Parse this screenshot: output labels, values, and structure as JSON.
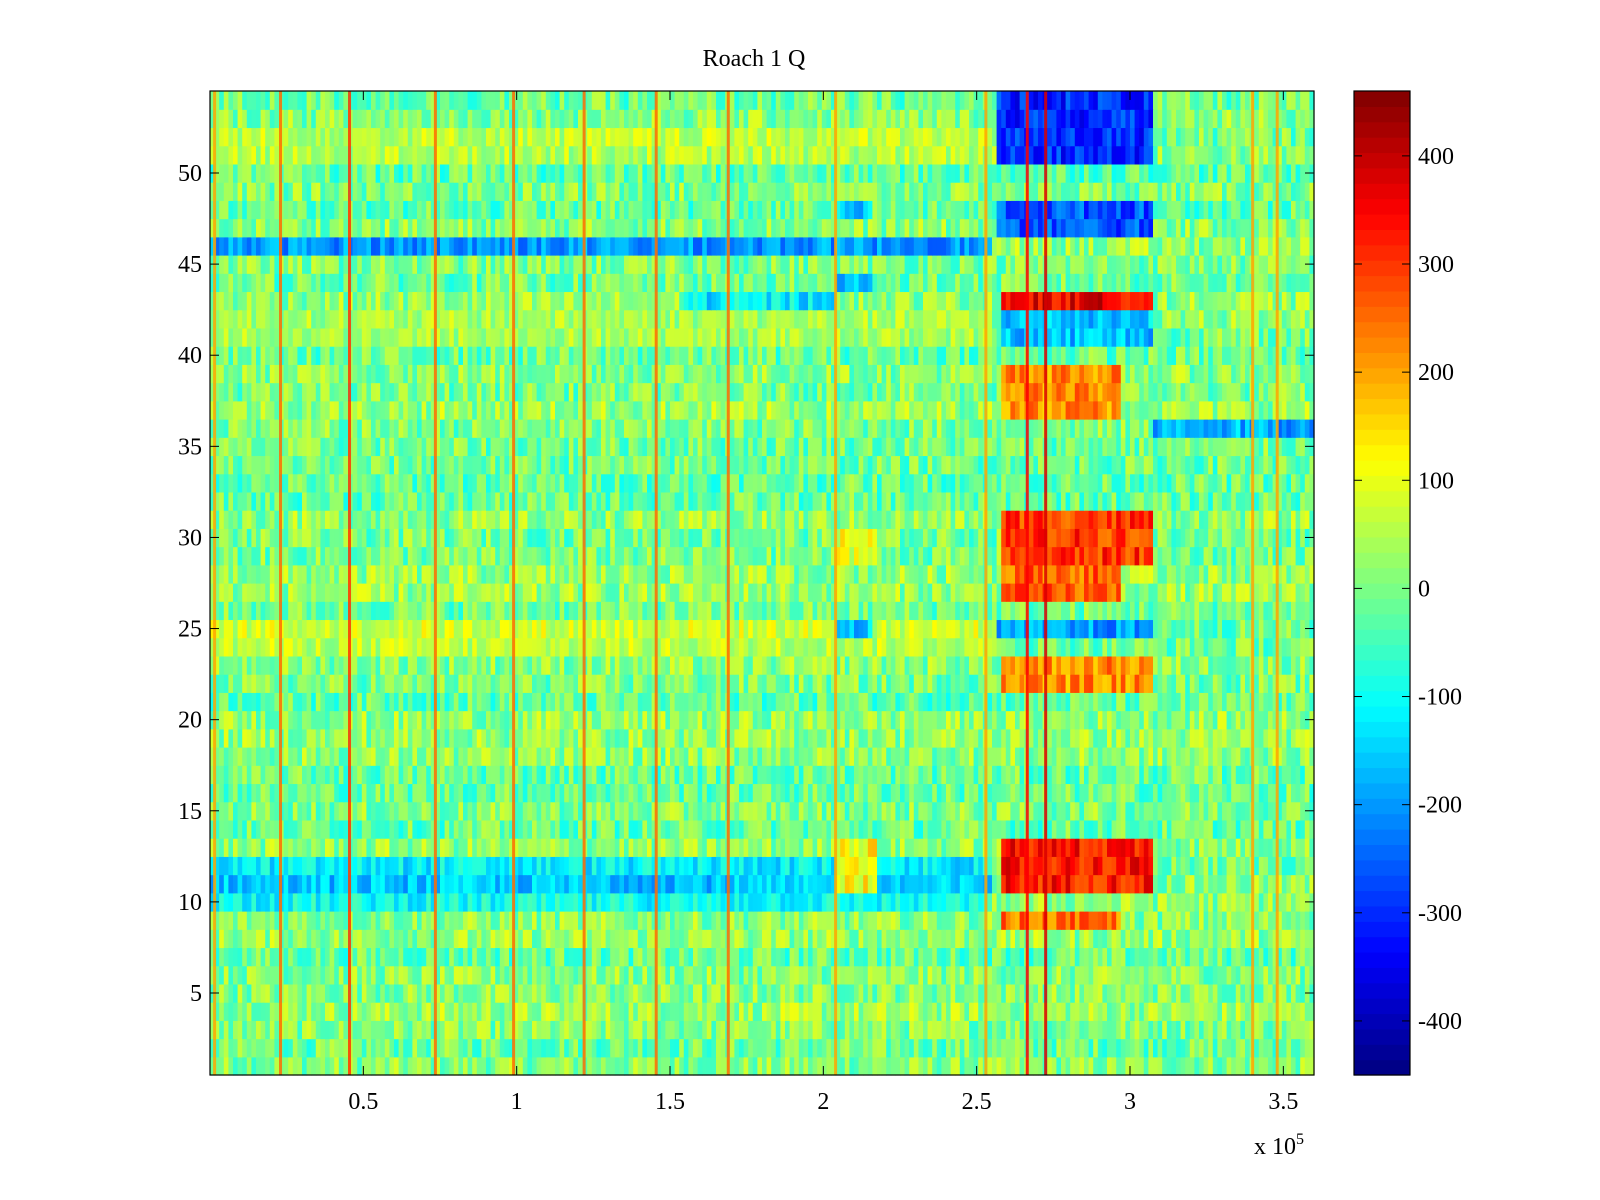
{
  "chart_data": {
    "type": "heatmap",
    "title": "Roach 1 Q",
    "xlabel": "",
    "ylabel": "",
    "x_exponent_label": "x 10",
    "x_exponent": "5",
    "xlim": [
      0,
      3.6
    ],
    "ylim": [
      0.5,
      54.5
    ],
    "x_ticks": [
      0.5,
      1,
      1.5,
      2,
      2.5,
      3,
      3.5
    ],
    "x_tick_labels": [
      "0.5",
      "1",
      "1.5",
      "2",
      "2.5",
      "3",
      "3.5"
    ],
    "y_ticks": [
      5,
      10,
      15,
      20,
      25,
      30,
      35,
      40,
      45,
      50
    ],
    "y_tick_labels": [
      "5",
      "10",
      "15",
      "20",
      "25",
      "30",
      "35",
      "40",
      "45",
      "50"
    ],
    "colorbar": {
      "colormap": "jet",
      "range": [
        -450,
        460
      ],
      "ticks": [
        -400,
        -300,
        -200,
        -100,
        0,
        100,
        200,
        300,
        400
      ],
      "tick_labels": [
        "-400",
        "-300",
        "-200",
        "-100",
        "0",
        "100",
        "200",
        "300",
        "400"
      ]
    },
    "rows": 54,
    "base_value": 0,
    "vertical_lines": [
      {
        "x": 0.015,
        "value": 200
      },
      {
        "x": 0.23,
        "value": 250
      },
      {
        "x": 0.455,
        "value": 300
      },
      {
        "x": 0.735,
        "value": 250
      },
      {
        "x": 0.99,
        "value": 250
      },
      {
        "x": 1.22,
        "value": 250
      },
      {
        "x": 1.455,
        "value": 250
      },
      {
        "x": 1.69,
        "value": 250
      },
      {
        "x": 2.04,
        "value": 200
      },
      {
        "x": 2.53,
        "value": 200
      },
      {
        "x": 2.665,
        "value": 350
      },
      {
        "x": 2.725,
        "value": 380
      },
      {
        "x": 3.4,
        "value": 200
      },
      {
        "x": 3.48,
        "value": 200
      }
    ],
    "row_values": [
      {
        "y": 52,
        "value": 60
      },
      {
        "y": 51,
        "value": 50
      },
      {
        "y": 46,
        "value": -200
      },
      {
        "y": 42,
        "value": 40
      },
      {
        "y": 41,
        "value": 40
      },
      {
        "y": 25,
        "value": 80
      },
      {
        "y": 24,
        "value": 60
      },
      {
        "y": 11,
        "value": -160
      },
      {
        "y": 12,
        "value": -120
      },
      {
        "y": 10,
        "value": -100
      }
    ],
    "blocks": [
      {
        "x": [
          2.57,
          3.08
        ],
        "y": [
          51,
          54
        ],
        "value": -300
      },
      {
        "x": [
          2.57,
          3.08
        ],
        "y": [
          47,
          48
        ],
        "value": -260
      },
      {
        "x": [
          2.58,
          3.08
        ],
        "y": [
          43,
          43
        ],
        "value": 360
      },
      {
        "x": [
          2.58,
          3.08
        ],
        "y": [
          41,
          42
        ],
        "value": -160
      },
      {
        "x": [
          2.58,
          2.97
        ],
        "y": [
          37,
          39
        ],
        "value": 220
      },
      {
        "x": [
          3.08,
          3.6
        ],
        "y": [
          36,
          36
        ],
        "value": -180
      },
      {
        "x": [
          2.58,
          3.08
        ],
        "y": [
          29,
          31
        ],
        "value": 300
      },
      {
        "x": [
          2.58,
          2.97
        ],
        "y": [
          27,
          28
        ],
        "value": 260
      },
      {
        "x": [
          2.56,
          3.08
        ],
        "y": [
          25,
          25
        ],
        "value": -200
      },
      {
        "x": [
          2.58,
          3.08
        ],
        "y": [
          22,
          23
        ],
        "value": 220
      },
      {
        "x": [
          2.58,
          3.08
        ],
        "y": [
          11,
          13
        ],
        "value": 330
      },
      {
        "x": [
          2.58,
          2.97
        ],
        "y": [
          9,
          9
        ],
        "value": 240
      },
      {
        "x": [
          2.04,
          2.18
        ],
        "y": [
          11,
          13
        ],
        "value": 120
      },
      {
        "x": [
          2.04,
          2.18
        ],
        "y": [
          29,
          30
        ],
        "value": 100
      },
      {
        "x": [
          2.04,
          2.16
        ],
        "y": [
          25,
          25
        ],
        "value": -170
      },
      {
        "x": [
          2.04,
          2.16
        ],
        "y": [
          44,
          44
        ],
        "value": -170
      },
      {
        "x": [
          2.04,
          2.16
        ],
        "y": [
          48,
          48
        ],
        "value": -150
      },
      {
        "x": [
          1.55,
          2.04
        ],
        "y": [
          43,
          43
        ],
        "value": -120
      }
    ]
  }
}
